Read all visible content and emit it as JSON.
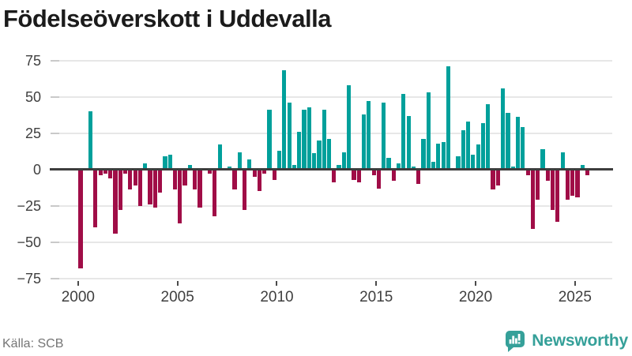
{
  "title": "Födelseöverskott i Uddevalla",
  "footer": {
    "source": "Källa: SCB",
    "brand": "Newsworthy"
  },
  "colors": {
    "positive_bar": "#00a09b",
    "negative_bar": "#a00d47",
    "brand_teal": "#35a099",
    "title_text": "#1b1b1b",
    "axis_text": "#3f3f3f",
    "source_text": "#757575",
    "gridline": "#e7e7e7",
    "zero_line": "#3d3d3d"
  },
  "chart_data": {
    "type": "bar",
    "title": "Födelseöverskott i Uddevalla",
    "frequency": "quarterly",
    "x_start": "2000-Q1",
    "x_end": "2025-Q3",
    "xlabel": "",
    "ylabel": "",
    "ylim": [
      -75,
      75
    ],
    "yticks": [
      75,
      50,
      25,
      0,
      -25,
      -50,
      -75
    ],
    "xticks_years": [
      2000,
      2005,
      2010,
      2015,
      2020,
      2025
    ],
    "grid": "horizontal",
    "legend": "none",
    "values": [
      -68,
      0,
      40,
      -40,
      -4,
      -3,
      -6,
      -44,
      -28,
      -3,
      -14,
      -11,
      -25,
      4,
      -24,
      -26,
      -16,
      9,
      10,
      -14,
      -37,
      -11,
      3,
      -14,
      -26,
      1,
      -3,
      -32,
      17,
      1,
      2,
      -14,
      12,
      -28,
      7,
      -5,
      -15,
      -3,
      41,
      -7,
      13,
      68,
      46,
      3,
      26,
      41,
      43,
      11,
      20,
      41,
      21,
      -9,
      3,
      12,
      58,
      -7,
      -9,
      38,
      47,
      -4,
      -13,
      46,
      8,
      -8,
      4,
      52,
      37,
      2,
      -10,
      21,
      53,
      5,
      18,
      19,
      71,
      0,
      9,
      27,
      33,
      10,
      17,
      32,
      45,
      -14,
      -11,
      56,
      39,
      2,
      36,
      29,
      -4,
      -41,
      -21,
      14,
      -8,
      -28,
      -36,
      12,
      -21,
      -18,
      -19,
      3,
      -4
    ]
  }
}
